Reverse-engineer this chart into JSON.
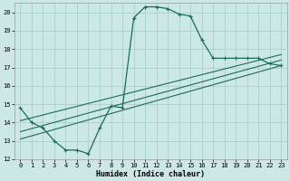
{
  "xlabel": "Humidex (Indice chaleur)",
  "bg_color": "#cce8e4",
  "grid_color": "#aacfcb",
  "line_color": "#1a6b5a",
  "xlim": [
    -0.5,
    23.5
  ],
  "ylim": [
    12,
    20.5
  ],
  "yticks": [
    12,
    13,
    14,
    15,
    16,
    17,
    18,
    19,
    20
  ],
  "xticks": [
    0,
    1,
    2,
    3,
    4,
    5,
    6,
    7,
    8,
    9,
    10,
    11,
    12,
    13,
    14,
    15,
    16,
    17,
    18,
    19,
    20,
    21,
    22,
    23
  ],
  "curve1_x": [
    0,
    1,
    2,
    3,
    4,
    5,
    6,
    7,
    8,
    9,
    10,
    11,
    12,
    13,
    14,
    15,
    16,
    17,
    18,
    19,
    20,
    21,
    22,
    23
  ],
  "curve1_y": [
    14.8,
    14.0,
    13.7,
    13.0,
    12.5,
    12.5,
    12.3,
    13.7,
    14.9,
    14.8,
    19.7,
    20.3,
    20.3,
    20.2,
    19.9,
    19.8,
    18.5,
    17.5,
    17.5,
    17.5,
    17.5,
    17.5,
    17.2,
    17.1
  ],
  "line1_x": [
    0,
    23
  ],
  "line1_y": [
    13.1,
    17.1
  ],
  "line2_x": [
    0,
    23
  ],
  "line2_y": [
    13.5,
    17.4
  ],
  "line3_x": [
    0,
    23
  ],
  "line3_y": [
    14.1,
    17.7
  ],
  "marker_x": [
    0,
    1,
    2,
    3,
    4,
    5,
    6,
    7,
    8,
    9,
    10,
    11,
    12,
    13,
    14,
    15,
    16,
    17,
    18,
    19,
    20,
    21,
    22,
    23
  ],
  "marker_y": [
    14.8,
    14.0,
    13.7,
    13.0,
    12.5,
    12.5,
    12.3,
    13.7,
    14.9,
    14.8,
    19.7,
    20.3,
    20.3,
    20.2,
    19.9,
    19.8,
    18.5,
    17.5,
    17.5,
    17.5,
    17.5,
    17.5,
    17.2,
    17.1
  ]
}
